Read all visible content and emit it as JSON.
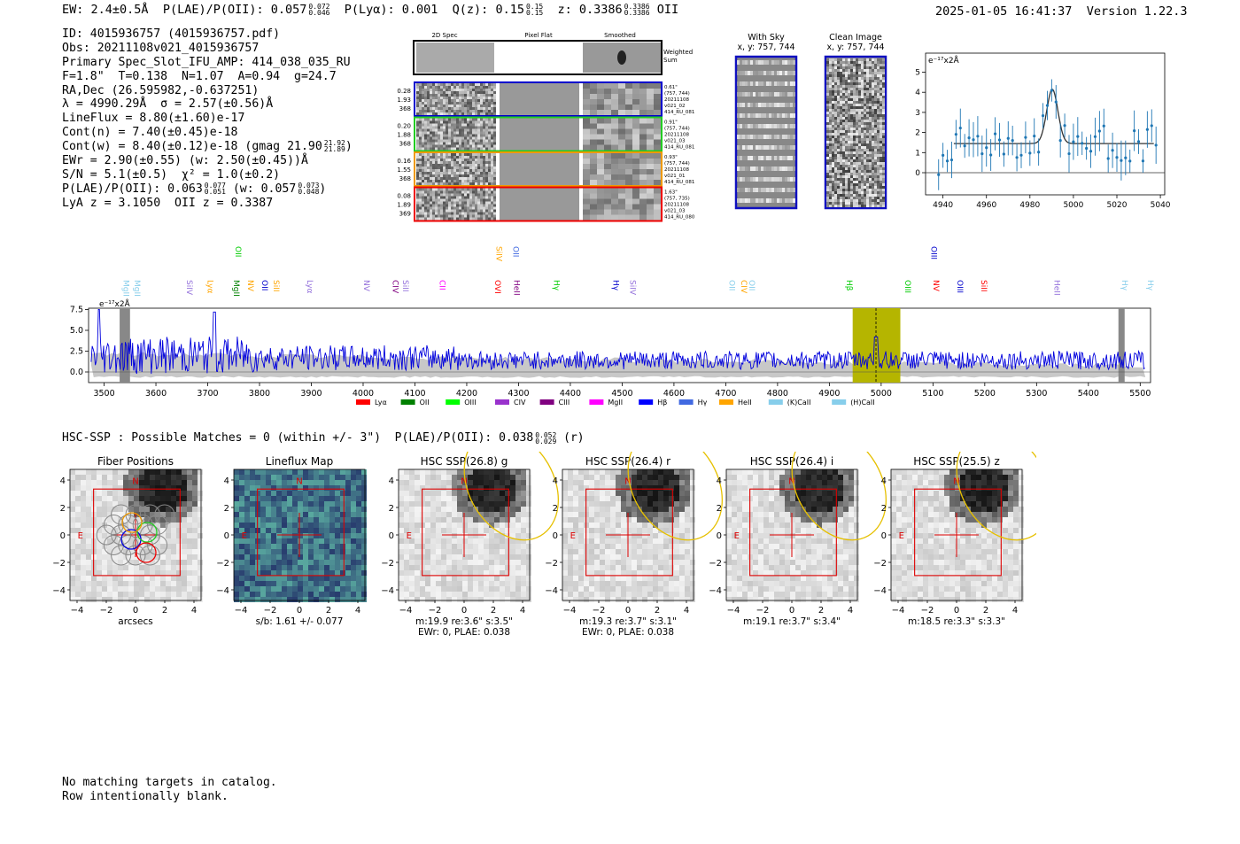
{
  "header": {
    "ew_text": "EW: 2.4±0.5Å",
    "plae_label": "P(LAE)/P(OII): 0.057",
    "plae_hi": "0.072",
    "plae_lo": "0.046",
    "plya_text": "P(Lyα): 0.001",
    "qz_label": "Q(z): 0.15",
    "qz_hi": "0.15",
    "qz_lo": "0.15",
    "z_label": "z: 0.3386",
    "z_hi": "0.3386",
    "z_lo": "0.3386",
    "line_name": "OII",
    "timestamp": "2025-01-05 16:41:37",
    "version": "Version 1.22.3"
  },
  "info": {
    "id": "ID: 4015936757 (4015936757.pdf)",
    "obs": "Obs: 20211108v021_4015936757",
    "primary": "Primary Spec_Slot_IFU_AMP: 414_038_035_RU",
    "params": "F=1.8\"  T=0.138  N=1.07  A=0.94  g=24.7",
    "radec": "RA,Dec (26.595982,-0.637251)",
    "lambda": "λ = 4990.29Å  σ = 2.57(±0.56)Å",
    "lineflux": "LineFlux = 8.80(±1.60)e-17",
    "contn": "Cont(n) = 7.40(±0.45)e-18",
    "contw_label": "Cont(w) = 8.40(±0.12)e-18 (gmag 21.90",
    "contw_hi": "21.92",
    "contw_lo": "21.89",
    "ewr": "EWr = 2.90(±0.55) (w: 2.50(±0.45))Å",
    "sn": "S/N = 5.1(±0.5)  χ² = 1.0(±0.2)",
    "plae_label": "P(LAE)/P(OII): 0.063",
    "plae_hi": "0.077",
    "plae_lo": "0.051",
    "plae_w_label": "(w: 0.057",
    "plae_w_hi": "0.073",
    "plae_w_lo": "0.048",
    "lya": "LyA z = 3.1050  OII z = 0.3387"
  },
  "cutouts": {
    "col_2d": "2D Spec",
    "col_flat": "Pixel Flat",
    "col_smooth": "Smoothed",
    "weighted_label_1": "Weighted",
    "weighted_label_2": "Sum",
    "rows": [
      {
        "nums": [
          "0.28",
          "1.93",
          "368"
        ],
        "meta": [
          "0.61\"",
          "(757, 744)",
          "20211108",
          "v021_02",
          "414_RU_081"
        ],
        "color": "#0000cc"
      },
      {
        "nums": [
          "0.20",
          "1.88",
          "368"
        ],
        "meta": [
          "0.91\"",
          "(757, 744)",
          "20211108",
          "v021_03",
          "414_RU_081"
        ],
        "color": "#22cc22"
      },
      {
        "nums": [
          "0.16",
          "1.55",
          "368"
        ],
        "meta": [
          "0.93\"",
          "(757, 744)",
          "20211108",
          "v021_01",
          "414_RU_081"
        ],
        "color": "#ee9900"
      },
      {
        "nums": [
          "0.08",
          "1.89",
          "369"
        ],
        "meta": [
          "1.63\"",
          "(757, 735)",
          "20211108",
          "v021_03",
          "414_RU_080"
        ],
        "color": "#ee0000"
      }
    ]
  },
  "sky": {
    "with_sky_title": "With Sky",
    "with_sky_sub": "x, y: 757, 744",
    "clean_title": "Clean Image",
    "clean_sub": "x, y: 757, 744"
  },
  "zoom_chart": {
    "unit_label": "e⁻¹⁷x2Å",
    "xticks": [
      "4940",
      "4960",
      "4980",
      "5000",
      "5020",
      "5040"
    ],
    "yticks": [
      "0",
      "1",
      "2",
      "3",
      "4",
      "5"
    ]
  },
  "spectrum": {
    "unit_label": "e⁻¹⁷x2Å",
    "xticks": [
      "3500",
      "3600",
      "3700",
      "3800",
      "3900",
      "4000",
      "4100",
      "4200",
      "4300",
      "4400",
      "4500",
      "4600",
      "4700",
      "4800",
      "4900",
      "5000",
      "5100",
      "5200",
      "5300",
      "5400",
      "5500"
    ],
    "yticks": [
      "0.0",
      "2.5",
      "5.0",
      "7.5"
    ],
    "lines": [
      {
        "name": "MgII",
        "wave": 3532,
        "color": "#87ceeb",
        "row": 0
      },
      {
        "name": "MgII",
        "wave": 3554,
        "color": "#87ceeb",
        "row": 0
      },
      {
        "name": "SiIV",
        "wave": 3655,
        "color": "#9370db",
        "row": 1
      },
      {
        "name": "Lyα",
        "wave": 3695,
        "color": "#ffa500",
        "row": 1
      },
      {
        "name": "MgII",
        "wave": 3745,
        "color": "#008000",
        "row": 1
      },
      {
        "name": "OII",
        "wave": 3749,
        "color": "#00cc00",
        "row": 3
      },
      {
        "name": "NV",
        "wave": 3773,
        "color": "#ffa500",
        "row": 1
      },
      {
        "name": "OII",
        "wave": 3800,
        "color": "#0000cc",
        "row": 1
      },
      {
        "name": "SiII",
        "wave": 3822,
        "color": "#ffa500",
        "row": 1
      },
      {
        "name": "Lyα",
        "wave": 3887,
        "color": "#9370db",
        "row": 1
      },
      {
        "name": "NV",
        "wave": 3997,
        "color": "#9370db",
        "row": 1
      },
      {
        "name": "CIV",
        "wave": 4052,
        "color": "#800080",
        "row": 1
      },
      {
        "name": "SiII",
        "wave": 4072,
        "color": "#9370db",
        "row": 1
      },
      {
        "name": "CII",
        "wave": 4143,
        "color": "#ff00ff",
        "row": 1
      },
      {
        "name": "OVI",
        "wave": 4250,
        "color": "#ff0000",
        "row": 1
      },
      {
        "name": "SiIV",
        "wave": 4252,
        "color": "#ffa500",
        "row": 2
      },
      {
        "name": "HeII",
        "wave": 4286,
        "color": "#800080",
        "row": 1
      },
      {
        "name": "OII",
        "wave": 4285,
        "color": "#4169e1",
        "row": 2
      },
      {
        "name": "Hγ",
        "wave": 4363,
        "color": "#00cc00",
        "row": 1
      },
      {
        "name": "Hγ",
        "wave": 4478,
        "color": "#0000cc",
        "row": 1
      },
      {
        "name": "SiIV",
        "wave": 4510,
        "color": "#9370db",
        "row": 1
      },
      {
        "name": "OII",
        "wave": 4702,
        "color": "#87ceeb",
        "row": 1
      },
      {
        "name": "CIV",
        "wave": 4725,
        "color": "#ffa500",
        "row": 1
      },
      {
        "name": "OII",
        "wave": 4740,
        "color": "#87ceeb",
        "row": 1
      },
      {
        "name": "Hβ",
        "wave": 4928,
        "color": "#00cc00",
        "row": 1
      },
      {
        "name": "OIII",
        "wave": 5041,
        "color": "#00cc00",
        "row": 1
      },
      {
        "name": "NV",
        "wave": 5096,
        "color": "#ff0000",
        "row": 1
      },
      {
        "name": "OIII",
        "wave": 5092,
        "color": "#0000cc",
        "row": 3
      },
      {
        "name": "OIII",
        "wave": 5142,
        "color": "#0000cc",
        "row": 1
      },
      {
        "name": "SiII",
        "wave": 5188,
        "color": "#ff0000",
        "row": 1
      },
      {
        "name": "HeII",
        "wave": 5329,
        "color": "#9370db",
        "row": 1
      },
      {
        "name": "Hγ",
        "wave": 5460,
        "color": "#87ceeb",
        "row": 1
      },
      {
        "name": "Hγ",
        "wave": 5510,
        "color": "#87ceeb",
        "row": 1
      }
    ],
    "legend": [
      {
        "label": "Lyα",
        "color": "#ff0000"
      },
      {
        "label": "OII",
        "color": "#008000"
      },
      {
        "label": "OIII",
        "color": "#00ff00"
      },
      {
        "label": "CIV",
        "color": "#9932cc"
      },
      {
        "label": "CIII",
        "color": "#800080"
      },
      {
        "label": "MgII",
        "color": "#ff00ff"
      },
      {
        "label": "Hβ",
        "color": "#0000ff"
      },
      {
        "label": "Hγ",
        "color": "#4169e1"
      },
      {
        "label": "HeII",
        "color": "#ffa500"
      },
      {
        "label": "(K)CaII",
        "color": "#87ceeb"
      },
      {
        "label": "(H)CaII",
        "color": "#87ceeb"
      }
    ]
  },
  "hsc": {
    "summary_label": "HSC-SSP : Possible Matches = 0 (within +/- 3\")  P(LAE)/P(OII): 0.038",
    "summary_hi": "0.052",
    "summary_lo": "0.029",
    "summary_band": "(r)",
    "panels": [
      {
        "title": "Fiber Positions",
        "cap1": "arcsecs",
        "cap2": ""
      },
      {
        "title": "Lineflux Map",
        "cap1": "s/b: 1.61 +/- 0.077",
        "cap2": ""
      },
      {
        "title": "HSC SSP(26.8) g",
        "cap1": "m:19.9  re:3.6\"  s:3.5\"",
        "cap2": "EWr: 0, PLAE: 0.038"
      },
      {
        "title": "HSC SSP(26.4) r",
        "cap1": "m:19.3  re:3.7\"  s:3.1\"",
        "cap2": "EWr: 0, PLAE: 0.038"
      },
      {
        "title": "HSC SSP(26.4) i",
        "cap1": "m:19.1  re:3.7\"  s:3.4\"",
        "cap2": ""
      },
      {
        "title": "HSC SSP(25.5) z",
        "cap1": "m:18.5  re:3.3\"  s:3.3\"",
        "cap2": ""
      }
    ],
    "xticks": [
      "−4",
      "−2",
      "0",
      "2",
      "4"
    ],
    "yticks": [
      "4",
      "2",
      "0",
      "−2",
      "−4"
    ],
    "north": "N",
    "east": "E"
  },
  "footer": {
    "line1": "No matching targets in catalog.",
    "line2": "Row intentionally blank."
  }
}
